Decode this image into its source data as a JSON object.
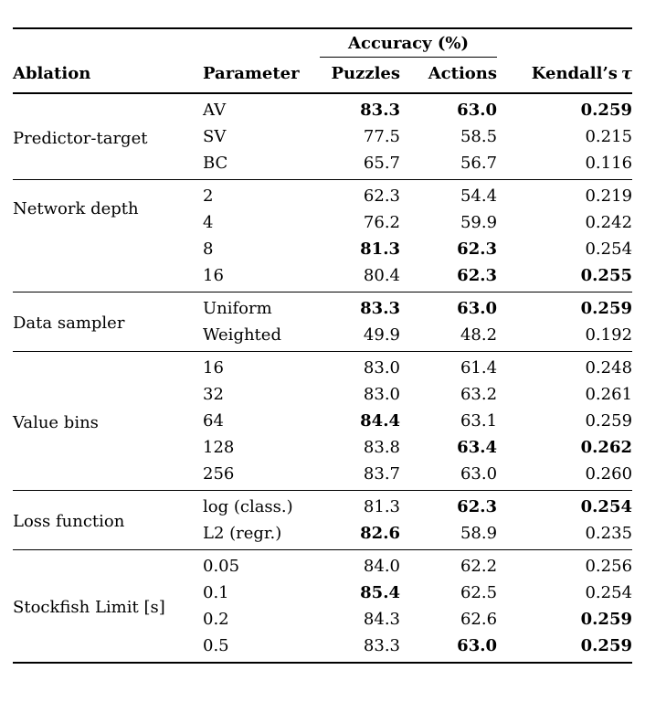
{
  "colors": {
    "text": "#000000",
    "background": "#ffffff",
    "rule": "#000000"
  },
  "table": {
    "headers": {
      "accuracy_group": "Accuracy (%)",
      "ablation": "Ablation",
      "parameter": "Parameter",
      "puzzles": "Puzzles",
      "actions": "Actions",
      "kendall_word": "Kendall’s",
      "kendall_tau": "τ"
    },
    "value_columns": [
      "Puzzles",
      "Actions",
      "Kendall's τ"
    ],
    "sections": [
      {
        "id": "predictor-target",
        "label": "Predictor-target",
        "label_align": "middle",
        "rows": [
          {
            "parameter": "AV",
            "values": [
              "83.3",
              "63.0",
              "0.259"
            ],
            "bold": [
              true,
              true,
              true
            ]
          },
          {
            "parameter": "SV",
            "values": [
              "77.5",
              "58.5",
              "0.215"
            ],
            "bold": [
              false,
              false,
              false
            ]
          },
          {
            "parameter": "BC",
            "values": [
              "65.7",
              "56.7",
              "0.116"
            ],
            "bold": [
              false,
              false,
              false
            ]
          }
        ]
      },
      {
        "id": "network-depth",
        "label": "Network depth",
        "label_align": "upper",
        "rows": [
          {
            "parameter": "2",
            "values": [
              "62.3",
              "54.4",
              "0.219"
            ],
            "bold": [
              false,
              false,
              false
            ]
          },
          {
            "parameter": "4",
            "values": [
              "76.2",
              "59.9",
              "0.242"
            ],
            "bold": [
              false,
              false,
              false
            ]
          },
          {
            "parameter": "8",
            "values": [
              "81.3",
              "62.3",
              "0.254"
            ],
            "bold": [
              true,
              true,
              false
            ]
          },
          {
            "parameter": "16",
            "values": [
              "80.4",
              "62.3",
              "0.255"
            ],
            "bold": [
              false,
              true,
              true
            ]
          }
        ]
      },
      {
        "id": "data-sampler",
        "label": "Data sampler",
        "label_align": "middle",
        "rows": [
          {
            "parameter": "Uniform",
            "values": [
              "83.3",
              "63.0",
              "0.259"
            ],
            "bold": [
              true,
              true,
              true
            ]
          },
          {
            "parameter": "Weighted",
            "values": [
              "49.9",
              "48.2",
              "0.192"
            ],
            "bold": [
              false,
              false,
              false
            ]
          }
        ]
      },
      {
        "id": "value-bins",
        "label": "Value bins",
        "label_align": "middle",
        "rows": [
          {
            "parameter": "16",
            "values": [
              "83.0",
              "61.4",
              "0.248"
            ],
            "bold": [
              false,
              false,
              false
            ]
          },
          {
            "parameter": "32",
            "values": [
              "83.0",
              "63.2",
              "0.261"
            ],
            "bold": [
              false,
              false,
              false
            ]
          },
          {
            "parameter": "64",
            "values": [
              "84.4",
              "63.1",
              "0.259"
            ],
            "bold": [
              true,
              false,
              false
            ]
          },
          {
            "parameter": "128",
            "values": [
              "83.8",
              "63.4",
              "0.262"
            ],
            "bold": [
              false,
              true,
              true
            ]
          },
          {
            "parameter": "256",
            "values": [
              "83.7",
              "63.0",
              "0.260"
            ],
            "bold": [
              false,
              false,
              false
            ]
          }
        ]
      },
      {
        "id": "loss-function",
        "label": "Loss function",
        "label_align": "middle",
        "rows": [
          {
            "parameter": "log (class.)",
            "values": [
              "81.3",
              "62.3",
              "0.254"
            ],
            "bold": [
              false,
              true,
              true
            ]
          },
          {
            "parameter": "L2 (regr.)",
            "values": [
              "82.6",
              "58.9",
              "0.235"
            ],
            "bold": [
              true,
              false,
              false
            ]
          }
        ]
      },
      {
        "id": "stockfish-limit",
        "label": "Stockfish Limit [s]",
        "label_align": "middle",
        "rows": [
          {
            "parameter": "0.05",
            "values": [
              "84.0",
              "62.2",
              "0.256"
            ],
            "bold": [
              false,
              false,
              false
            ]
          },
          {
            "parameter": "0.1",
            "values": [
              "85.4",
              "62.5",
              "0.254"
            ],
            "bold": [
              true,
              false,
              false
            ]
          },
          {
            "parameter": "0.2",
            "values": [
              "84.3",
              "62.6",
              "0.259"
            ],
            "bold": [
              false,
              false,
              true
            ]
          },
          {
            "parameter": "0.5",
            "values": [
              "83.3",
              "63.0",
              "0.259"
            ],
            "bold": [
              false,
              true,
              true
            ]
          }
        ]
      }
    ]
  }
}
